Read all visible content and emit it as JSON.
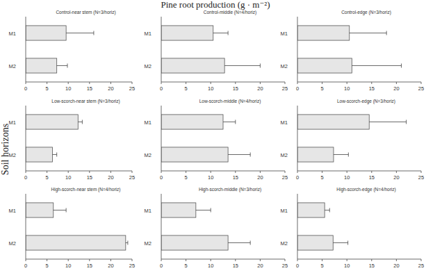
{
  "title": "Pine root production (g · m⁻²)",
  "y_label": "Soil horizons",
  "chart_data": [
    {
      "type": "bar",
      "orientation": "horizontal",
      "title": "Control-near stem (N=3/horiz)",
      "categories": [
        "M1",
        "M2"
      ],
      "values": [
        9.5,
        7.3
      ],
      "errors": [
        6.5,
        2.5
      ],
      "color": "#e6e6e6",
      "xlim": [
        0,
        25
      ],
      "xticks": [
        0,
        5,
        10,
        15,
        20,
        25
      ]
    },
    {
      "type": "bar",
      "orientation": "horizontal",
      "title": "Control-middle (N=4/horiz)",
      "categories": [
        "M1",
        "M2"
      ],
      "values": [
        10.5,
        12.8
      ],
      "errors": [
        3,
        7.2
      ],
      "color": "#e6e6e6",
      "xlim": [
        0,
        25
      ],
      "xticks": [
        0,
        5,
        10,
        15,
        20,
        25
      ]
    },
    {
      "type": "bar",
      "orientation": "horizontal",
      "title": "Control-edge (N=3/horiz)",
      "categories": [
        "M1",
        "M2"
      ],
      "values": [
        10.5,
        11
      ],
      "errors": [
        7.5,
        10
      ],
      "color": "#e6e6e6",
      "xlim": [
        0,
        25
      ],
      "xticks": [
        0,
        5,
        10,
        15,
        20,
        25
      ]
    },
    {
      "type": "bar",
      "orientation": "horizontal",
      "title": "Low-scorch-near stem (N=3/horiz)",
      "categories": [
        "M1",
        "M2"
      ],
      "values": [
        12.3,
        6.3
      ],
      "errors": [
        1,
        1
      ],
      "color": "#e6e6e6",
      "xlim": [
        0,
        25
      ],
      "xticks": [
        0,
        5,
        10,
        15,
        20,
        25
      ]
    },
    {
      "type": "bar",
      "orientation": "horizontal",
      "title": "Low-scorch-middle (N=4/horiz)",
      "categories": [
        "M1",
        "M2"
      ],
      "values": [
        12.5,
        13.5
      ],
      "errors": [
        2.5,
        4.5
      ],
      "color": "#e6e6e6",
      "xlim": [
        0,
        25
      ],
      "xticks": [
        0,
        5,
        10,
        15,
        20,
        25
      ]
    },
    {
      "type": "bar",
      "orientation": "horizontal",
      "title": "Low-scorch-edge (N=3/horiz)",
      "categories": [
        "M1",
        "M2"
      ],
      "values": [
        14.5,
        7.3
      ],
      "errors": [
        7.5,
        3
      ],
      "color": "#e6e6e6",
      "xlim": [
        0,
        25
      ],
      "xticks": [
        0,
        5,
        10,
        15,
        20,
        25
      ]
    },
    {
      "type": "bar",
      "orientation": "horizontal",
      "title": "High-scorch-near stem (N=4/horiz)",
      "categories": [
        "M1",
        "M2"
      ],
      "values": [
        6.5,
        23.5
      ],
      "errors": [
        3,
        0.5
      ],
      "color": "#e6e6e6",
      "xlim": [
        0,
        25
      ],
      "xticks": [
        0,
        5,
        10,
        15,
        20,
        25
      ]
    },
    {
      "type": "bar",
      "orientation": "horizontal",
      "title": "High-scorch-middle (N=3/horiz)",
      "categories": [
        "M1",
        "M2"
      ],
      "values": [
        7,
        13.5
      ],
      "errors": [
        3,
        4.5
      ],
      "color": "#e6e6e6",
      "xlim": [
        0,
        25
      ],
      "xticks": [
        0,
        5,
        10,
        15,
        20,
        25
      ]
    },
    {
      "type": "bar",
      "orientation": "horizontal",
      "title": "High-scorch-edge (N=4/horiz)",
      "categories": [
        "M1",
        "M2"
      ],
      "values": [
        5.5,
        7.2
      ],
      "errors": [
        1,
        3
      ],
      "color": "#e6e6e6",
      "xlim": [
        0,
        25
      ],
      "xticks": [
        0,
        5,
        10,
        15,
        20,
        25
      ]
    }
  ]
}
